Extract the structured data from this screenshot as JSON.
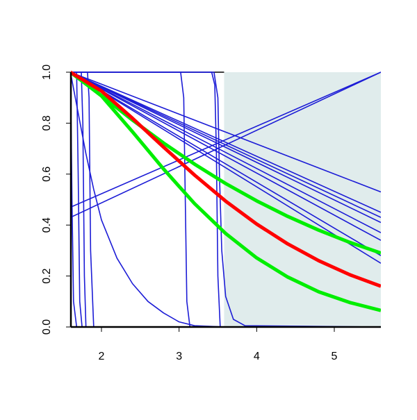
{
  "chart_data": {
    "type": "line",
    "xlim": [
      1.606,
      5.6
    ],
    "ylim": [
      0,
      1
    ],
    "xticks": [
      2,
      3,
      4,
      5
    ],
    "yticks": [
      {
        "value": 0,
        "label": "0.0"
      },
      {
        "value": 0.2,
        "label": "0.2"
      },
      {
        "value": 0.4,
        "label": "0.4"
      },
      {
        "value": 0.6,
        "label": "0.6"
      },
      {
        "value": 0.8,
        "label": "0.8"
      },
      {
        "value": 1,
        "label": "1.0"
      }
    ],
    "shade_xlim": [
      3.58,
      5.6
    ],
    "shade_color": "#e0ecec",
    "series": [
      {
        "color": "#1c1cd6",
        "line_width": 1.6,
        "x": [
          1.6,
          5.6
        ],
        "values": [
          1,
          0.53
        ]
      },
      {
        "color": "#1c1cd6",
        "line_width": 1.6,
        "x": [
          1.6,
          5.6
        ],
        "values": [
          1,
          0.45
        ]
      },
      {
        "color": "#1c1cd6",
        "line_width": 1.6,
        "x": [
          1.6,
          5.6
        ],
        "values": [
          1,
          0.43
        ]
      },
      {
        "color": "#1c1cd6",
        "line_width": 1.6,
        "x": [
          1.6,
          5.6
        ],
        "values": [
          1,
          0.41
        ]
      },
      {
        "color": "#1c1cd6",
        "line_width": 1.6,
        "x": [
          1.6,
          5.6
        ],
        "values": [
          1,
          0.37
        ]
      },
      {
        "color": "#1c1cd6",
        "line_width": 1.6,
        "x": [
          1.6,
          5.6
        ],
        "values": [
          1,
          0.34
        ]
      },
      {
        "color": "#1c1cd6",
        "line_width": 1.6,
        "x": [
          1.6,
          5.6
        ],
        "values": [
          1,
          0.28
        ]
      },
      {
        "color": "#1c1cd6",
        "line_width": 1.6,
        "x": [
          1.6,
          5.6
        ],
        "values": [
          1,
          0.25
        ]
      },
      {
        "color": "#1c1cd6",
        "line_width": 1.6,
        "x": [
          1.6,
          5.6
        ],
        "values": [
          0.47,
          1
        ]
      },
      {
        "color": "#1c1cd6",
        "line_width": 1.6,
        "x": [
          1.6,
          5.6
        ],
        "values": [
          0.43,
          1
        ]
      },
      {
        "color": "#1c1cd6",
        "line_width": 1.6,
        "x": [
          1.6,
          1.7,
          1.8,
          1.9,
          2.0,
          2.2,
          2.4,
          2.6,
          2.8,
          3.0,
          3.2,
          3.6,
          5.6
        ],
        "values": [
          1,
          0.84,
          0.68,
          0.54,
          0.42,
          0.27,
          0.17,
          0.1,
          0.055,
          0.02,
          0.005,
          0,
          0
        ]
      },
      {
        "color": "#1c1cd6",
        "line_width": 1.6,
        "x": [
          1.6,
          1.605,
          1.62,
          1.64,
          1.68,
          5.6
        ],
        "values": [
          1,
          0.9,
          0.5,
          0.1,
          0,
          0
        ]
      },
      {
        "color": "#1c1cd6",
        "line_width": 1.6,
        "x": [
          1.6,
          1.68,
          1.7,
          1.72,
          1.75,
          5.6
        ],
        "values": [
          1,
          1,
          0.6,
          0.1,
          0,
          0
        ]
      },
      {
        "color": "#1c1cd6",
        "line_width": 1.6,
        "x": [
          1.6,
          1.74,
          1.76,
          1.78,
          1.8,
          5.6
        ],
        "values": [
          1,
          1,
          0.8,
          0.2,
          0,
          0
        ]
      },
      {
        "color": "#1c1cd6",
        "line_width": 1.6,
        "x": [
          1.6,
          1.82,
          1.84,
          1.86,
          1.9,
          5.6
        ],
        "values": [
          1,
          1,
          0.9,
          0.3,
          0,
          0
        ]
      },
      {
        "color": "#1c1cd6",
        "line_width": 1.6,
        "x": [
          1.6,
          3.02,
          3.06,
          3.08,
          3.1,
          3.14,
          5.6
        ],
        "values": [
          1,
          1,
          0.9,
          0.5,
          0.1,
          0,
          0
        ]
      },
      {
        "color": "#1c1cd6",
        "line_width": 1.6,
        "x": [
          1.6,
          3.42,
          3.46,
          3.48,
          3.5,
          3.53,
          5.6
        ],
        "values": [
          1,
          1,
          0.95,
          0.7,
          0.2,
          0,
          0
        ]
      },
      {
        "color": "#1c1cd6",
        "line_width": 1.6,
        "x": [
          1.6,
          3.45,
          3.5,
          3.52,
          3.55,
          3.6,
          3.7,
          3.85,
          5.6
        ],
        "values": [
          1,
          1,
          0.9,
          0.6,
          0.3,
          0.12,
          0.03,
          0.005,
          0
        ]
      },
      {
        "color": "#00ee00",
        "line_width": 5,
        "x": [
          1.6,
          2.0,
          2.4,
          2.8,
          3.2,
          3.6,
          4.0,
          4.4,
          4.8,
          5.2,
          5.6
        ],
        "values": [
          1,
          0.908,
          0.812,
          0.722,
          0.639,
          0.563,
          0.495,
          0.434,
          0.38,
          0.332,
          0.29
        ]
      },
      {
        "color": "#00ee00",
        "line_width": 5,
        "x": [
          1.6,
          2.0,
          2.4,
          2.8,
          3.2,
          3.6,
          4.0,
          4.4,
          4.8,
          5.2,
          5.6
        ],
        "values": [
          1,
          0.907,
          0.766,
          0.62,
          0.484,
          0.367,
          0.271,
          0.196,
          0.138,
          0.096,
          0.065
        ]
      },
      {
        "color": "#ff0000",
        "line_width": 5,
        "x": [
          1.6,
          2.0,
          2.4,
          2.8,
          3.2,
          3.6,
          4.0,
          4.4,
          4.8,
          5.2,
          5.6
        ],
        "values": [
          1,
          0.926,
          0.819,
          0.706,
          0.596,
          0.494,
          0.404,
          0.326,
          0.26,
          0.205,
          0.16
        ]
      }
    ]
  }
}
